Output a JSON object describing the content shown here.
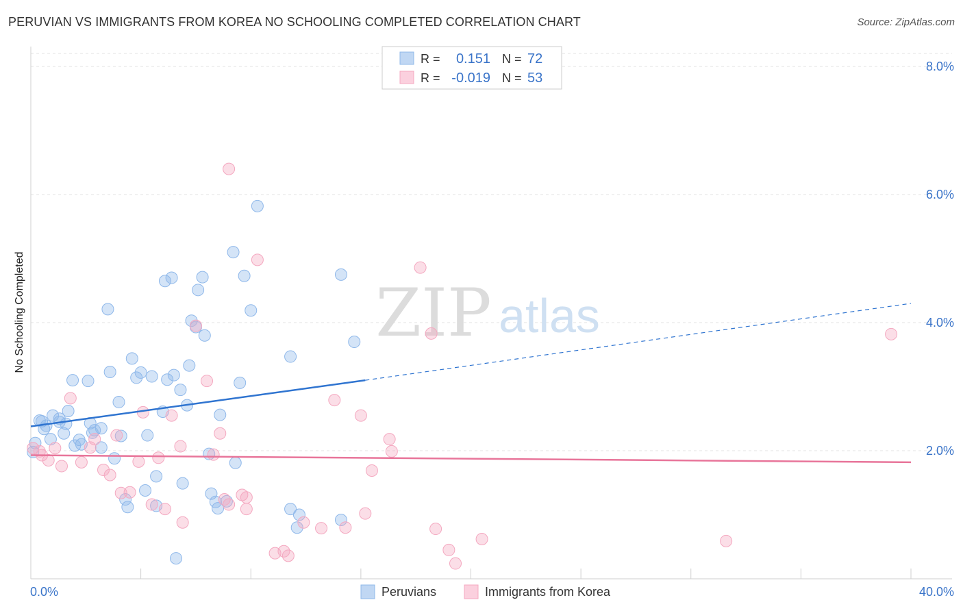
{
  "title": "PERUVIAN VS IMMIGRANTS FROM KOREA NO SCHOOLING COMPLETED CORRELATION CHART",
  "source": "Source: ZipAtlas.com",
  "watermark": {
    "zip": "ZIP",
    "atlas": "atlas"
  },
  "colors": {
    "blue": "#8fb8ea",
    "blue_line": "#2f74d0",
    "pink": "#f4a8c0",
    "pink_line": "#e8759a",
    "axis_text": "#3a74c9"
  },
  "stats_box": {
    "rows": [
      {
        "r_label": "R =",
        "r_value": "0.151",
        "n_label": "N =",
        "n_value": "72",
        "color": "blue"
      },
      {
        "r_label": "R =",
        "r_value": "-0.019",
        "n_label": "N =",
        "n_value": "53",
        "color": "pink"
      }
    ]
  },
  "legend": [
    {
      "label": "Peruvians",
      "color": "blue"
    },
    {
      "label": "Immigrants from Korea",
      "color": "pink"
    }
  ],
  "chart_data": {
    "type": "scatter",
    "title": "PERUVIAN VS IMMIGRANTS FROM KOREA NO SCHOOLING COMPLETED CORRELATION CHART",
    "xlabel": "",
    "ylabel": "No Schooling Completed",
    "xlim": [
      0,
      40
    ],
    "ylim": [
      0,
      8.25
    ],
    "x_tick_labels": [
      "0.0%",
      "40.0%"
    ],
    "y_ticks": [
      2,
      4,
      6,
      8
    ],
    "y_tick_labels": [
      "2.0%",
      "4.0%",
      "6.0%",
      "8.0%"
    ],
    "grid": true,
    "series": [
      {
        "name": "Peruvians",
        "color": "blue",
        "r": 0.151,
        "n": 72,
        "trend": {
          "x0": 0,
          "y0": 2.38,
          "x1": 15.2,
          "y1": 3.1,
          "x_dash_end": 40,
          "y_dash_end": 4.3
        },
        "points": [
          [
            0.1,
            1.98
          ],
          [
            0.2,
            2.12
          ],
          [
            0.4,
            2.47
          ],
          [
            0.5,
            2.46
          ],
          [
            0.6,
            2.34
          ],
          [
            0.7,
            2.39
          ],
          [
            0.9,
            2.18
          ],
          [
            1.0,
            2.55
          ],
          [
            1.3,
            2.5
          ],
          [
            1.5,
            2.27
          ],
          [
            1.6,
            2.42
          ],
          [
            1.7,
            2.62
          ],
          [
            1.9,
            3.1
          ],
          [
            2.2,
            2.17
          ],
          [
            2.3,
            2.1
          ],
          [
            2.6,
            3.09
          ],
          [
            2.7,
            2.43
          ],
          [
            2.8,
            2.28
          ],
          [
            2.9,
            2.32
          ],
          [
            3.2,
            2.35
          ],
          [
            3.2,
            2.05
          ],
          [
            3.5,
            4.21
          ],
          [
            3.6,
            3.23
          ],
          [
            3.8,
            1.88
          ],
          [
            4.0,
            2.76
          ],
          [
            4.1,
            2.23
          ],
          [
            4.6,
            3.44
          ],
          [
            4.8,
            3.14
          ],
          [
            5.0,
            3.22
          ],
          [
            5.3,
            2.24
          ],
          [
            5.5,
            3.16
          ],
          [
            5.7,
            1.6
          ],
          [
            6.0,
            2.61
          ],
          [
            6.1,
            4.65
          ],
          [
            6.2,
            3.11
          ],
          [
            6.4,
            4.7
          ],
          [
            6.5,
            3.18
          ],
          [
            6.8,
            2.95
          ],
          [
            6.9,
            1.49
          ],
          [
            7.1,
            2.71
          ],
          [
            7.2,
            3.33
          ],
          [
            7.3,
            4.03
          ],
          [
            7.5,
            3.93
          ],
          [
            7.6,
            4.51
          ],
          [
            7.8,
            4.71
          ],
          [
            7.9,
            3.8
          ],
          [
            8.1,
            1.95
          ],
          [
            8.2,
            1.33
          ],
          [
            8.4,
            1.2
          ],
          [
            8.5,
            1.1
          ],
          [
            8.6,
            2.56
          ],
          [
            8.9,
            1.21
          ],
          [
            9.2,
            5.1
          ],
          [
            9.3,
            1.81
          ],
          [
            9.5,
            3.06
          ],
          [
            9.7,
            4.73
          ],
          [
            10.0,
            4.19
          ],
          [
            10.3,
            5.82
          ],
          [
            11.8,
            3.47
          ],
          [
            11.8,
            1.09
          ],
          [
            12.1,
            0.8
          ],
          [
            12.2,
            1.0
          ],
          [
            14.1,
            4.75
          ],
          [
            14.1,
            0.92
          ],
          [
            14.7,
            3.7
          ],
          [
            4.3,
            1.24
          ],
          [
            4.4,
            1.12
          ],
          [
            5.2,
            1.38
          ],
          [
            5.7,
            1.14
          ],
          [
            6.6,
            0.32
          ],
          [
            1.3,
            2.45
          ],
          [
            2.0,
            2.08
          ]
        ]
      },
      {
        "name": "Immigrants from Korea",
        "color": "pink",
        "r": -0.019,
        "n": 53,
        "trend": {
          "x0": 0,
          "y0": 1.93,
          "x1": 40,
          "y1": 1.82
        },
        "points": [
          [
            0.1,
            2.04
          ],
          [
            0.4,
            1.99
          ],
          [
            0.5,
            1.93
          ],
          [
            0.8,
            1.85
          ],
          [
            1.1,
            2.04
          ],
          [
            1.4,
            1.76
          ],
          [
            1.8,
            2.82
          ],
          [
            2.3,
            1.82
          ],
          [
            2.7,
            2.05
          ],
          [
            2.9,
            2.18
          ],
          [
            3.3,
            1.7
          ],
          [
            3.6,
            1.62
          ],
          [
            3.9,
            2.24
          ],
          [
            4.1,
            1.34
          ],
          [
            4.5,
            1.35
          ],
          [
            4.9,
            1.83
          ],
          [
            5.1,
            2.6
          ],
          [
            5.5,
            1.16
          ],
          [
            5.8,
            1.89
          ],
          [
            6.1,
            1.09
          ],
          [
            6.4,
            2.55
          ],
          [
            6.8,
            2.07
          ],
          [
            6.9,
            0.88
          ],
          [
            7.5,
            3.95
          ],
          [
            8.0,
            3.09
          ],
          [
            8.3,
            1.94
          ],
          [
            8.6,
            2.27
          ],
          [
            8.8,
            1.24
          ],
          [
            9.0,
            1.16
          ],
          [
            9.6,
            1.31
          ],
          [
            9.8,
            1.27
          ],
          [
            9.8,
            1.09
          ],
          [
            9.0,
            6.4
          ],
          [
            10.3,
            4.98
          ],
          [
            11.1,
            0.4
          ],
          [
            11.5,
            0.43
          ],
          [
            11.7,
            0.36
          ],
          [
            12.4,
            0.88
          ],
          [
            13.2,
            0.79
          ],
          [
            13.8,
            2.79
          ],
          [
            14.3,
            0.8
          ],
          [
            15.0,
            2.55
          ],
          [
            15.2,
            1.02
          ],
          [
            15.5,
            1.69
          ],
          [
            16.3,
            2.18
          ],
          [
            16.4,
            1.99
          ],
          [
            17.7,
            4.86
          ],
          [
            18.2,
            3.83
          ],
          [
            18.4,
            0.78
          ],
          [
            19.0,
            0.45
          ],
          [
            19.3,
            0.24
          ],
          [
            20.5,
            0.62
          ],
          [
            31.6,
            0.59
          ],
          [
            39.1,
            3.82
          ]
        ]
      }
    ]
  }
}
